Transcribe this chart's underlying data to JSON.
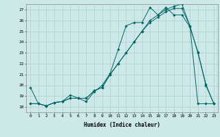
{
  "xlabel": "Humidex (Indice chaleur)",
  "background_color": "#cce8e8",
  "grid_color": "#b0cccc",
  "line_color": "#006666",
  "xlim": [
    -0.5,
    23.5
  ],
  "ylim": [
    17.5,
    27.5
  ],
  "yticks": [
    18,
    19,
    20,
    21,
    22,
    23,
    24,
    25,
    26,
    27
  ],
  "xticks": [
    0,
    1,
    2,
    3,
    4,
    5,
    6,
    7,
    8,
    9,
    10,
    11,
    12,
    13,
    14,
    15,
    16,
    17,
    18,
    19,
    20,
    21,
    22,
    23
  ],
  "line1_x": [
    0,
    1,
    2,
    3,
    4,
    5,
    6,
    7,
    8,
    9,
    10,
    11,
    12,
    13,
    14,
    15,
    16,
    17,
    18,
    19,
    20,
    21,
    22,
    23
  ],
  "line1_y": [
    19.8,
    18.3,
    18.1,
    18.4,
    18.5,
    19.1,
    18.8,
    18.5,
    19.4,
    20.0,
    21.1,
    23.3,
    25.5,
    25.8,
    25.8,
    27.2,
    26.5,
    27.2,
    26.5,
    26.5,
    25.4,
    23.1,
    20.1,
    18.3
  ],
  "line2_x": [
    0,
    1,
    2,
    3,
    4,
    5,
    6,
    7,
    8,
    9,
    10,
    11,
    12,
    13,
    14,
    15,
    16,
    17,
    18,
    19,
    20,
    21,
    22,
    23
  ],
  "line2_y": [
    18.3,
    18.3,
    18.1,
    18.4,
    18.5,
    18.8,
    18.8,
    18.8,
    19.5,
    19.8,
    21.0,
    22.0,
    23.0,
    24.0,
    25.0,
    26.0,
    26.5,
    27.0,
    27.3,
    27.5,
    25.5,
    23.0,
    20.0,
    18.3
  ],
  "line3_x": [
    0,
    1,
    2,
    3,
    4,
    5,
    6,
    7,
    8,
    9,
    10,
    11,
    12,
    13,
    14,
    15,
    16,
    17,
    18,
    19,
    20,
    21,
    22,
    23
  ],
  "line3_y": [
    18.3,
    18.3,
    18.1,
    18.4,
    18.5,
    18.8,
    18.8,
    18.8,
    19.5,
    19.8,
    21.0,
    22.0,
    23.0,
    24.0,
    25.0,
    25.8,
    26.3,
    26.8,
    27.1,
    27.1,
    25.5,
    18.3,
    18.3,
    18.3
  ]
}
